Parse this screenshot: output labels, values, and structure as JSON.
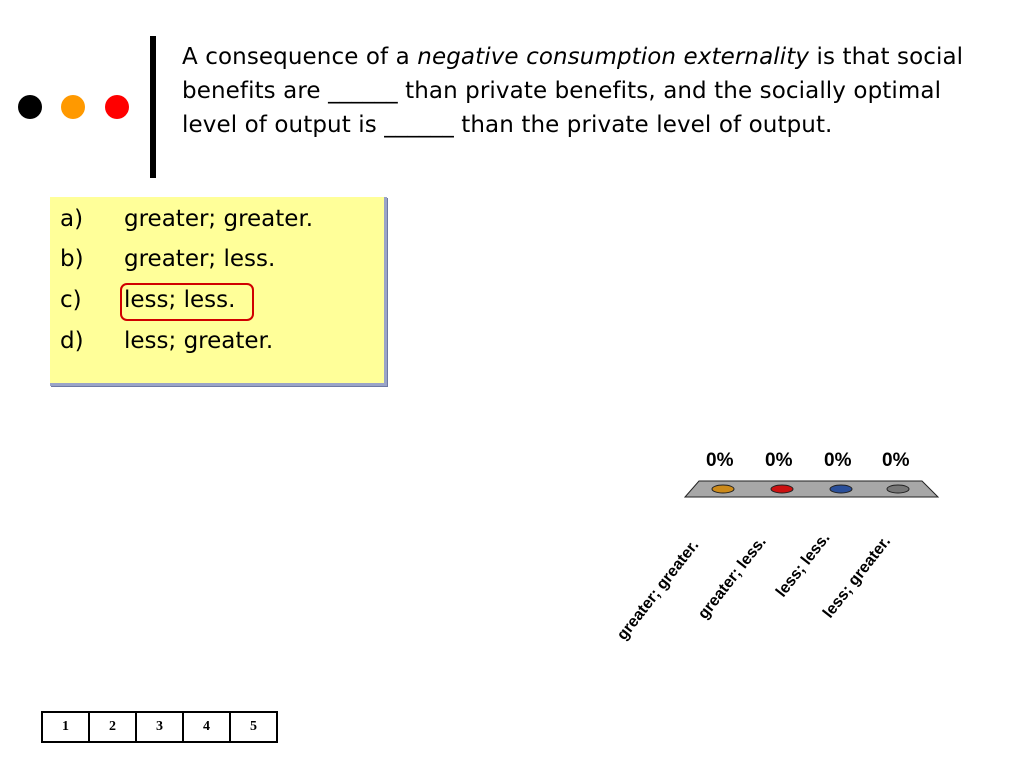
{
  "decor": {
    "dot_colors": [
      "#000000",
      "#ff9900",
      "#ff0000"
    ]
  },
  "question": {
    "part1": "A consequence of a ",
    "emphasis": "negative consumption externality",
    "part2": " is that social benefits are ______ than private benefits, and the socially optimal level of output is ______ than the private level of output."
  },
  "options": [
    {
      "letter": "a)",
      "text": "greater; greater."
    },
    {
      "letter": "b)",
      "text": "greater; less."
    },
    {
      "letter": "c)",
      "text": "less; less."
    },
    {
      "letter": "d)",
      "text": "less; greater."
    }
  ],
  "chart_data": {
    "type": "bar",
    "categories": [
      "greater; greater.",
      "greater; less.",
      "less; less.",
      "less; greater."
    ],
    "values": [
      0,
      0,
      0,
      0
    ],
    "value_labels": [
      "0%",
      "0%",
      "0%",
      "0%"
    ],
    "colors": [
      "#cc8a1a",
      "#cc1111",
      "#2a4f9a",
      "#777777"
    ]
  },
  "pagination": {
    "pages": [
      "1",
      "2",
      "3",
      "4",
      "5"
    ]
  }
}
